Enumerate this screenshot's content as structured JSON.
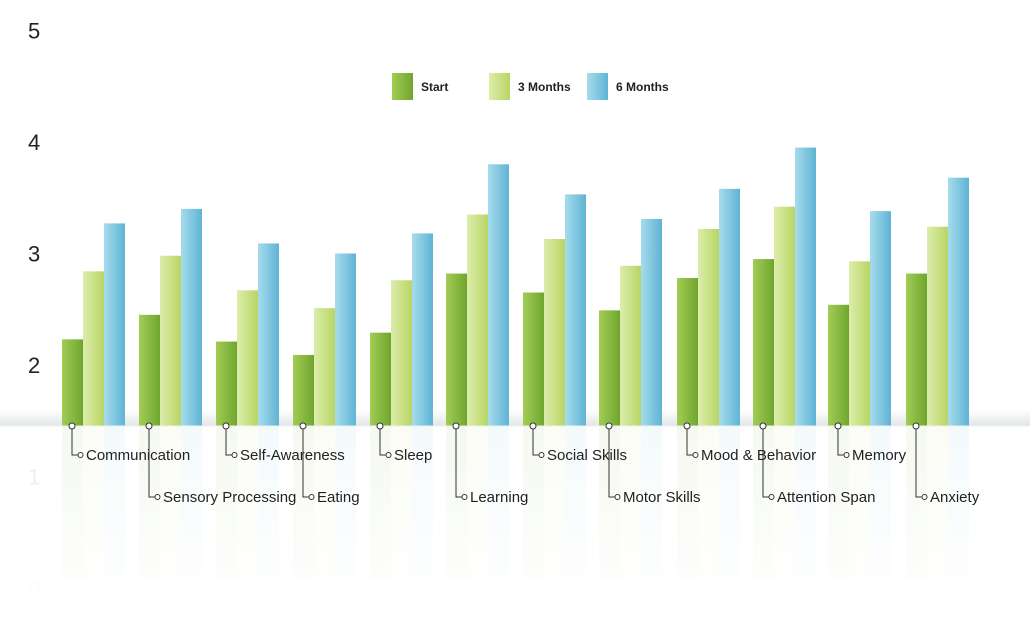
{
  "chart_data": {
    "type": "bar",
    "title": "",
    "xlabel": "",
    "ylabel": "",
    "ylim": [
      0,
      5
    ],
    "y_ticks": [
      "0",
      "1",
      "2",
      "3",
      "4",
      "5"
    ],
    "grid": false,
    "legend_position": "top-center",
    "categories": [
      "Communication",
      "Sensory Processing",
      "Self-Awareness",
      "Eating",
      "Sleep",
      "Learning",
      "Social Skills",
      "Motor Skills",
      "Mood & Behavior",
      "Attention Span",
      "Memory",
      "Anxiety"
    ],
    "series": [
      {
        "name": "Start",
        "color": "#7fb13c",
        "values": [
          2.23,
          2.45,
          2.21,
          2.09,
          2.29,
          2.82,
          2.65,
          2.49,
          2.78,
          2.95,
          2.54,
          2.82
        ]
      },
      {
        "name": "3 Months",
        "color": "#c9e07e",
        "values": [
          2.84,
          2.98,
          2.67,
          2.51,
          2.76,
          3.35,
          3.13,
          2.89,
          3.22,
          3.42,
          2.93,
          3.24
        ]
      },
      {
        "name": "6 Months",
        "color": "#6fbedb",
        "values": [
          3.27,
          3.4,
          3.09,
          3.0,
          3.18,
          3.8,
          3.53,
          3.31,
          3.58,
          3.95,
          3.38,
          3.68
        ]
      }
    ]
  }
}
